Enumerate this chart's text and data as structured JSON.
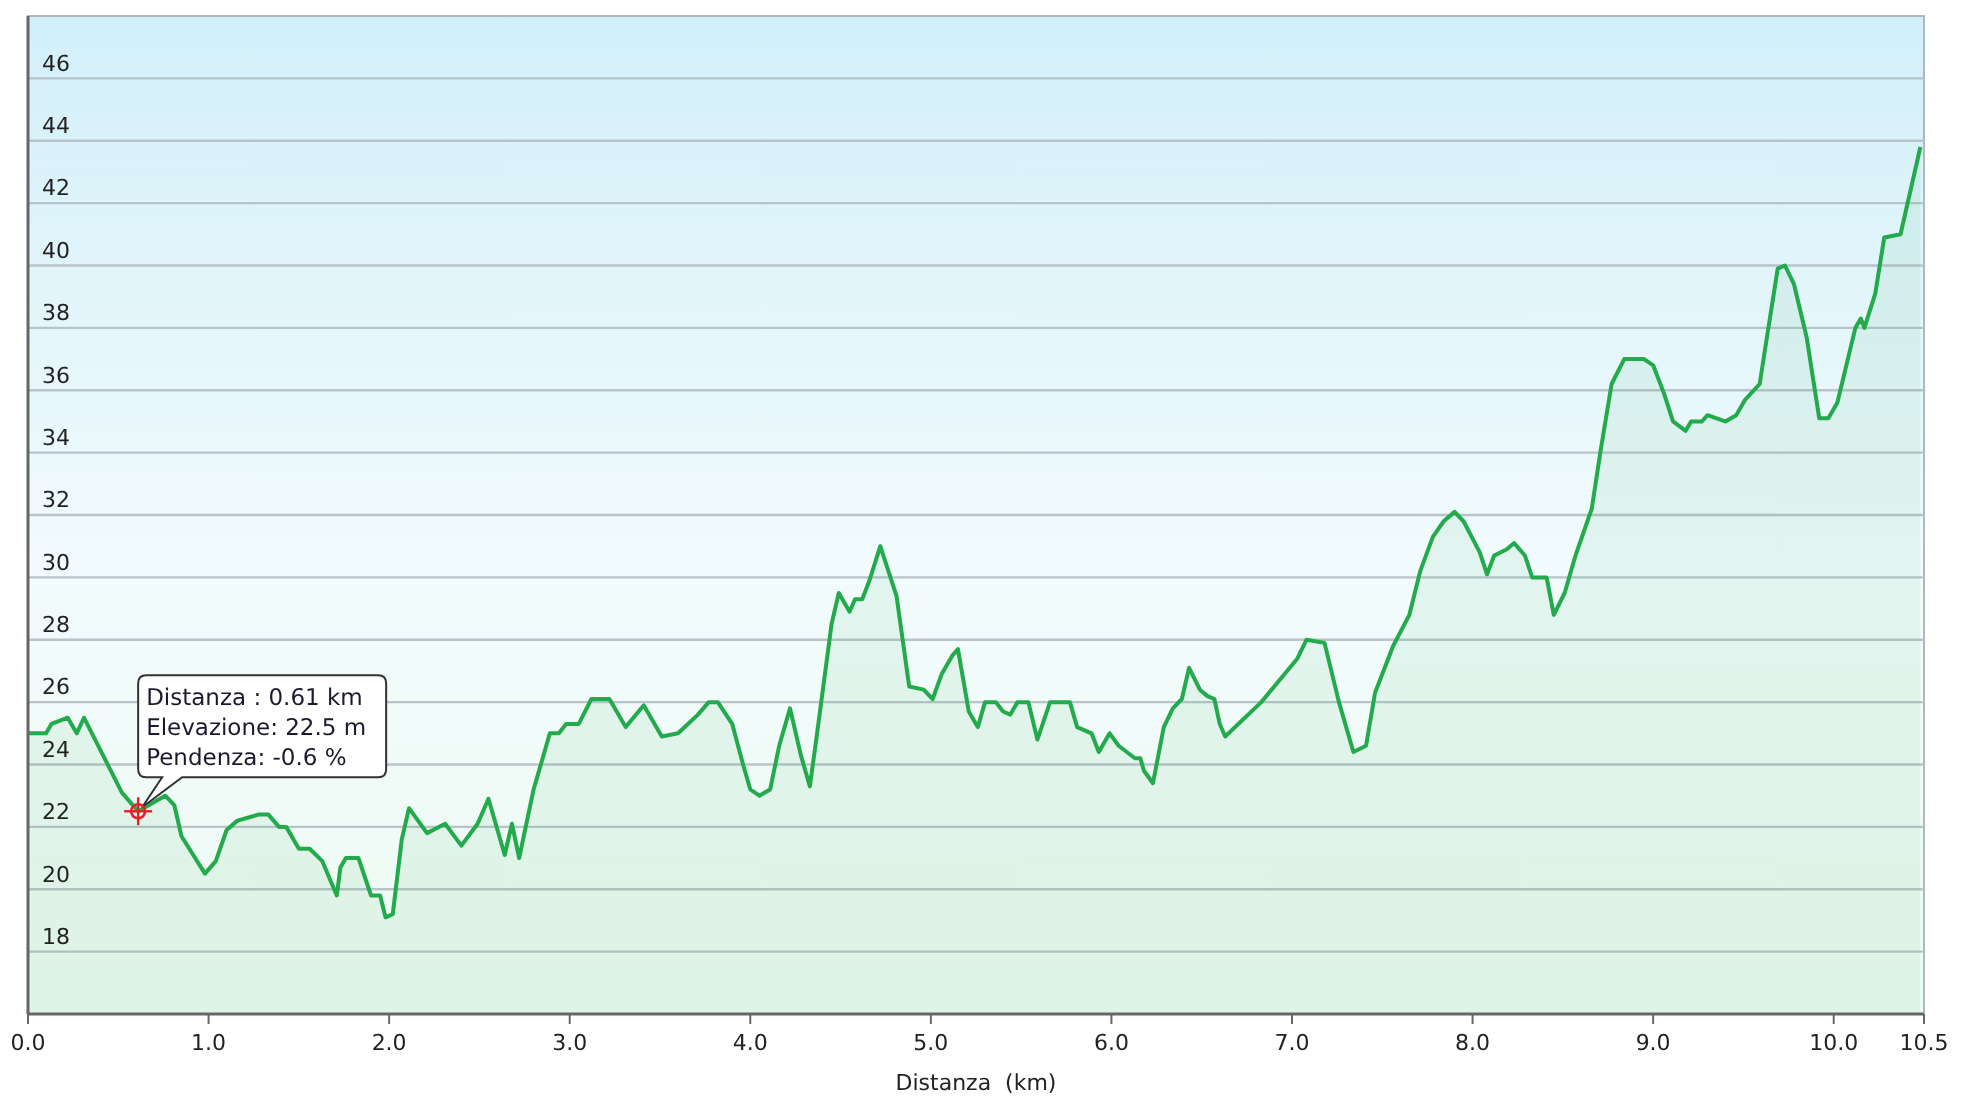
{
  "chart_data": {
    "type": "area",
    "xlabel": "Distanza  (km)",
    "xlim": [
      0,
      10.5
    ],
    "xticks": [
      {
        "value": 0,
        "label": "0.0"
      },
      {
        "value": 1,
        "label": "1.0"
      },
      {
        "value": 2,
        "label": "2.0"
      },
      {
        "value": 3,
        "label": "3.0"
      },
      {
        "value": 4,
        "label": "4.0"
      },
      {
        "value": 5,
        "label": "5.0"
      },
      {
        "value": 6,
        "label": "6.0"
      },
      {
        "value": 7,
        "label": "7.0"
      },
      {
        "value": 8,
        "label": "8.0"
      },
      {
        "value": 9,
        "label": "9.0"
      },
      {
        "value": 10,
        "label": "10.0"
      },
      10.5
    ],
    "ylim": [
      16,
      48
    ],
    "yticks": [
      18,
      20,
      22,
      24,
      26,
      28,
      30,
      32,
      34,
      36,
      38,
      40,
      42,
      44,
      46
    ],
    "grid": "y",
    "annotations": [
      {
        "text": "Distanza : 0.61 km\nElevazione: 22.5 m\nPendenza: -0.6 %",
        "x": 0.61,
        "y": 22.5
      }
    ],
    "series": [
      {
        "color": "#22aa4c",
        "x": [
          0,
          0.1,
          0.13,
          0.22,
          0.27,
          0.31,
          0.52,
          0.61,
          0.76,
          0.81,
          0.85,
          0.98,
          1.04,
          1.1,
          1.16,
          1.28,
          1.33,
          1.39,
          1.43,
          1.5,
          1.56,
          1.63,
          1.71,
          1.73,
          1.76,
          1.83,
          1.9,
          1.95,
          1.98,
          2.02,
          2.07,
          2.11,
          2.21,
          2.31,
          2.4,
          2.49,
          2.55,
          2.64,
          2.68,
          2.72,
          2.8,
          2.89,
          2.94,
          2.98,
          3.05,
          3.12,
          3.22,
          3.31,
          3.41,
          3.51,
          3.6,
          3.71,
          3.77,
          3.82,
          3.9,
          3.96,
          4.0,
          4.05,
          4.11,
          4.16,
          4.22,
          4.28,
          4.33,
          4.37,
          4.45,
          4.49,
          4.55,
          4.58,
          4.62,
          4.66,
          4.72,
          4.81,
          4.88,
          4.96,
          5.01,
          5.06,
          5.12,
          5.15,
          5.21,
          5.26,
          5.3,
          5.36,
          5.4,
          5.44,
          5.48,
          5.54,
          5.59,
          5.66,
          5.77,
          5.81,
          5.89,
          5.93,
          5.99,
          6.04,
          6.13,
          6.16,
          6.18,
          6.23,
          6.29,
          6.34,
          6.39,
          6.43,
          6.49,
          6.53,
          6.57,
          6.6,
          6.63,
          6.83,
          7.03,
          7.08,
          7.18,
          7.26,
          7.34,
          7.41,
          7.46,
          7.56,
          7.65,
          7.71,
          7.78,
          7.84,
          7.9,
          7.95,
          8.04,
          8.08,
          8.12,
          8.19,
          8.23,
          8.29,
          8.33,
          8.41,
          8.45,
          8.51,
          8.57,
          8.66,
          8.71,
          8.77,
          8.84,
          8.95,
          9.0,
          9.06,
          9.11,
          9.18,
          9.21,
          9.27,
          9.3,
          9.4,
          9.46,
          9.51,
          9.59,
          9.63,
          9.69,
          9.73,
          9.78,
          9.85,
          9.92,
          9.97,
          10.02,
          10.12,
          10.15,
          10.17,
          10.23,
          10.28,
          10.37,
          10.48
        ],
        "values": [
          25.0,
          25.0,
          25.3,
          25.5,
          25.0,
          25.5,
          23.1,
          22.5,
          23.0,
          22.7,
          21.7,
          20.5,
          20.9,
          21.9,
          22.2,
          22.4,
          22.4,
          22.0,
          22.0,
          21.3,
          21.3,
          20.9,
          19.8,
          20.7,
          21.0,
          21.0,
          19.8,
          19.8,
          19.1,
          19.2,
          21.6,
          22.6,
          21.8,
          22.1,
          21.4,
          22.1,
          22.9,
          21.1,
          22.1,
          21.0,
          23.2,
          25.0,
          25.0,
          25.3,
          25.3,
          26.1,
          26.1,
          25.2,
          25.9,
          24.9,
          25.0,
          25.6,
          26.0,
          26.0,
          25.3,
          24.0,
          23.2,
          23.0,
          23.2,
          24.6,
          25.8,
          24.3,
          23.3,
          25.0,
          28.5,
          29.5,
          28.9,
          29.3,
          29.3,
          29.9,
          31.0,
          29.4,
          26.5,
          26.4,
          26.1,
          26.9,
          27.5,
          27.7,
          25.7,
          25.2,
          26.0,
          26.0,
          25.7,
          25.6,
          26.0,
          26.0,
          24.8,
          26.0,
          26.0,
          25.2,
          25.0,
          24.4,
          25.0,
          24.6,
          24.2,
          24.2,
          23.8,
          23.4,
          25.2,
          25.8,
          26.1,
          27.1,
          26.4,
          26.2,
          26.1,
          25.3,
          24.9,
          26.0,
          27.4,
          28.0,
          27.9,
          26.0,
          24.4,
          24.6,
          26.3,
          27.8,
          28.8,
          30.2,
          31.3,
          31.8,
          32.1,
          31.8,
          30.8,
          30.1,
          30.7,
          30.9,
          31.1,
          30.7,
          30.0,
          30.0,
          28.8,
          29.5,
          30.7,
          32.2,
          34.1,
          36.2,
          37.0,
          37.0,
          36.8,
          35.9,
          35.0,
          34.7,
          35.0,
          35.0,
          35.2,
          35.0,
          35.2,
          35.7,
          36.2,
          37.7,
          39.9,
          40.0,
          39.4,
          37.7,
          35.1,
          35.1,
          35.6,
          38.0,
          38.3,
          38.0,
          39.1,
          40.9,
          41.0,
          43.8
        ]
      }
    ]
  }
}
